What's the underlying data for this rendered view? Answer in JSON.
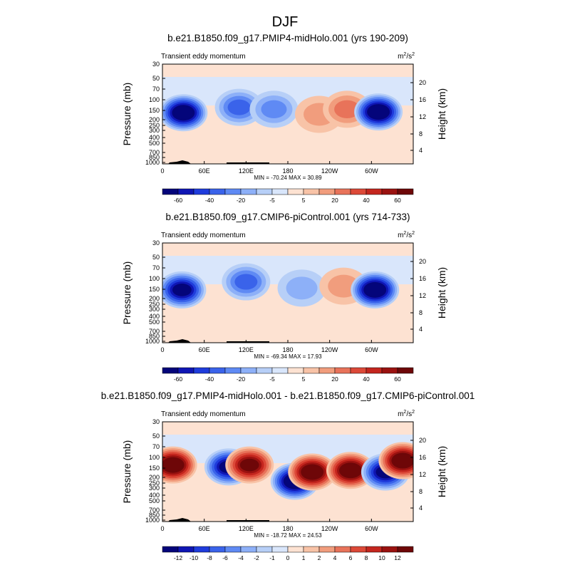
{
  "page": {
    "title": "DJF"
  },
  "chart_data": [
    {
      "type": "contour",
      "title": "b.e21.B1850.f09_g17.PMIP4-midHolo.001 (yrs 190-209)",
      "subtitle": "Transient eddy momentum",
      "units": "m²/s²",
      "units_parts": {
        "base": "m",
        "exp1": "2",
        "mid": "/s",
        "exp2": "2"
      },
      "ylabel": "Pressure (mb)",
      "ylabel_right": "Height (km)",
      "xticks": [
        "0",
        "60E",
        "120E",
        "180",
        "120W",
        "60W"
      ],
      "yticks": [
        "30",
        "50",
        "70",
        "100",
        "150",
        "200",
        "250",
        "300",
        "400",
        "500",
        "700",
        "850",
        "1000"
      ],
      "height_ticks": [
        "20",
        "16",
        "12",
        "8",
        "4"
      ],
      "stats": "MIN = -70.24   MAX = 30.89",
      "colorbar_labels": [
        "-60",
        "-40",
        "-20",
        "-5",
        "5",
        "20",
        "40",
        "60"
      ],
      "features": [
        {
          "lon": 30,
          "p": 170,
          "value": -70
        },
        {
          "lon": 110,
          "p": 140,
          "value": -35
        },
        {
          "lon": 160,
          "p": 150,
          "value": -30
        },
        {
          "lon": 225,
          "p": 180,
          "value": 20
        },
        {
          "lon": 265,
          "p": 150,
          "value": 30
        },
        {
          "lon": 310,
          "p": 165,
          "value": -70
        }
      ]
    },
    {
      "type": "contour",
      "title": "b.e21.B1850.f09_g17.CMIP6-piControl.001 (yrs 714-733)",
      "subtitle": "Transient eddy momentum",
      "units": "m²/s²",
      "units_parts": {
        "base": "m",
        "exp1": "2",
        "mid": "/s",
        "exp2": "2"
      },
      "ylabel": "Pressure (mb)",
      "ylabel_right": "Height (km)",
      "xticks": [
        "0",
        "60E",
        "120E",
        "180",
        "120W",
        "60W"
      ],
      "yticks": [
        "30",
        "50",
        "70",
        "100",
        "150",
        "200",
        "250",
        "300",
        "400",
        "500",
        "700",
        "850",
        "1000"
      ],
      "height_ticks": [
        "20",
        "16",
        "12",
        "8",
        "4"
      ],
      "stats": "MIN = -69.34   MAX = 17.93",
      "colorbar_labels": [
        "-60",
        "-40",
        "-20",
        "-5",
        "5",
        "20",
        "40",
        "60"
      ],
      "features": [
        {
          "lon": 28,
          "p": 160,
          "value": -65
        },
        {
          "lon": 120,
          "p": 120,
          "value": -35
        },
        {
          "lon": 200,
          "p": 150,
          "value": -20
        },
        {
          "lon": 260,
          "p": 140,
          "value": 15
        },
        {
          "lon": 305,
          "p": 160,
          "value": -69
        }
      ]
    },
    {
      "type": "contour",
      "title": "b.e21.B1850.f09_g17.PMIP4-midHolo.001 - b.e21.B1850.f09_g17.CMIP6-piControl.001",
      "subtitle": "Transient eddy momentum",
      "units": "m²/s²",
      "units_parts": {
        "base": "m",
        "exp1": "2",
        "mid": "/s",
        "exp2": "2"
      },
      "ylabel": "Pressure (mb)",
      "ylabel_right": "Height (km)",
      "xticks": [
        "0",
        "60E",
        "120E",
        "180",
        "120W",
        "60W"
      ],
      "yticks": [
        "30",
        "50",
        "70",
        "100",
        "150",
        "200",
        "250",
        "300",
        "400",
        "500",
        "700",
        "850",
        "1000"
      ],
      "height_ticks": [
        "20",
        "16",
        "12",
        "8",
        "4"
      ],
      "stats": "MIN = -18.72   MAX = 24.53",
      "colorbar_labels": [
        "-12",
        "-10",
        "-8",
        "-6",
        "-4",
        "-2",
        "-1",
        "0",
        "1",
        "2",
        "4",
        "6",
        "8",
        "10",
        "12"
      ],
      "features": [
        {
          "lon": 15,
          "p": 140,
          "value": 14
        },
        {
          "lon": 95,
          "p": 150,
          "value": -12
        },
        {
          "lon": 125,
          "p": 140,
          "value": 12
        },
        {
          "lon": 190,
          "p": 250,
          "value": -16
        },
        {
          "lon": 215,
          "p": 180,
          "value": 16
        },
        {
          "lon": 270,
          "p": 170,
          "value": 24
        },
        {
          "lon": 320,
          "p": 180,
          "value": -12
        },
        {
          "lon": 345,
          "p": 120,
          "value": 14
        }
      ]
    }
  ]
}
